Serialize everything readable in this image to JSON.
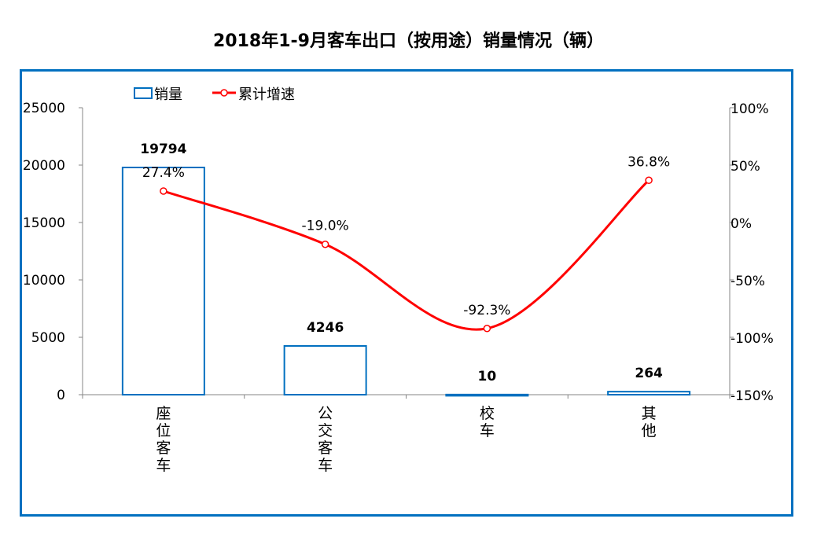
{
  "chart_data": {
    "type": "bar+line",
    "title": "2018年1-9月客车出口（按用途）销量情况（辆）",
    "categories": [
      "座位客车",
      "公交客车",
      "校车",
      "其他"
    ],
    "series": [
      {
        "name": "销量",
        "type": "bar",
        "axis": "left",
        "values": [
          19794,
          4246,
          10,
          264
        ],
        "labels": [
          "19794",
          "4246",
          "10",
          "264"
        ],
        "color": "#0070C0"
      },
      {
        "name": "累计增速",
        "type": "line",
        "axis": "right",
        "values": [
          27.4,
          -19.0,
          -92.3,
          36.8
        ],
        "labels": [
          "27.4%",
          "-19.0%",
          "-92.3%",
          "36.8%"
        ],
        "color": "#FF0000"
      }
    ],
    "y_left": {
      "min": 0,
      "max": 25000,
      "ticks": [
        "0",
        "5000",
        "10000",
        "15000",
        "20000",
        "25000"
      ]
    },
    "y_right": {
      "min": -150,
      "max": 100,
      "ticks": [
        "-150%",
        "-100%",
        "-50%",
        "0%",
        "50%",
        "100%"
      ]
    },
    "legend": "top-left",
    "grid": false
  }
}
